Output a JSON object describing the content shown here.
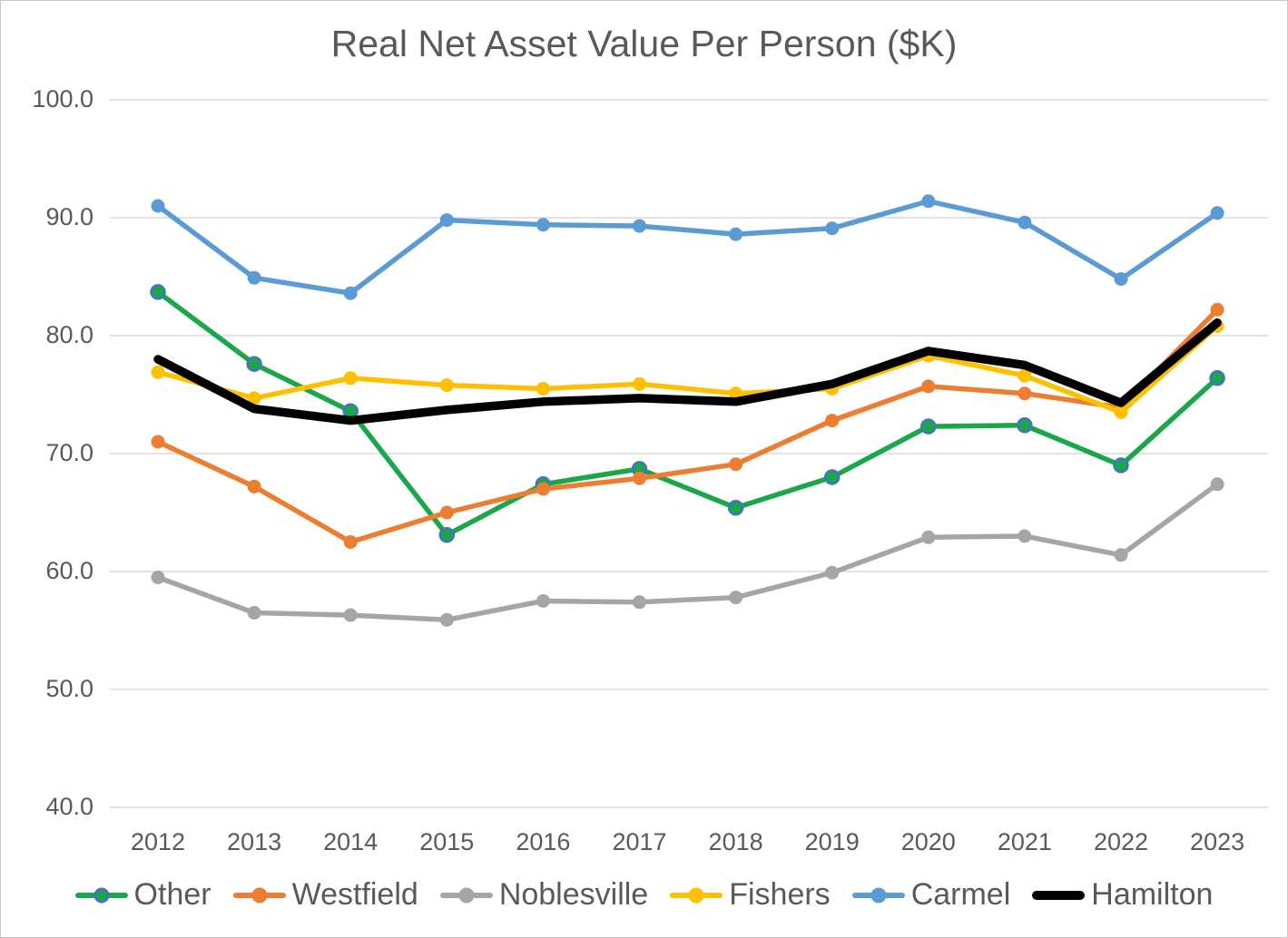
{
  "chart_data": {
    "type": "line",
    "title": "Real Net Asset Value Per Person ($K)",
    "xlabel": "",
    "ylabel": "",
    "x_tick_labels": [
      "2012",
      "2013",
      "2014",
      "2015",
      "2016",
      "2017",
      "2018",
      "2019",
      "2020",
      "2021",
      "2022",
      "2023"
    ],
    "y_tick_labels": [
      "100.0",
      "90.0",
      "80.0",
      "70.0",
      "60.0",
      "50.0",
      "40.0"
    ],
    "y_tick_values": [
      100,
      90,
      80,
      70,
      60,
      50,
      40
    ],
    "ylim": [
      40,
      100
    ],
    "grid": "horizontal-only",
    "gridline_color": "#d9d9d9",
    "text_color": "#595959",
    "legend_position": "bottom",
    "series": [
      {
        "name": "Other",
        "color": "#1aa74a",
        "marker": true,
        "marker_border_color": "#4472c4",
        "values": [
          83.7,
          77.6,
          73.6,
          63.1,
          67.4,
          68.7,
          65.4,
          68.0,
          72.3,
          72.4,
          69.0,
          76.4
        ]
      },
      {
        "name": "Westfield",
        "color": "#ed7d31",
        "marker": true,
        "marker_border_color": null,
        "values": [
          71.0,
          67.2,
          62.5,
          65.0,
          67.0,
          67.9,
          69.1,
          72.8,
          75.7,
          75.1,
          73.9,
          82.2
        ]
      },
      {
        "name": "Noblesville",
        "color": "#a5a5a5",
        "marker": true,
        "marker_border_color": null,
        "values": [
          59.5,
          56.5,
          56.3,
          55.9,
          57.5,
          57.4,
          57.8,
          59.9,
          62.9,
          63.0,
          61.4,
          67.4
        ]
      },
      {
        "name": "Fishers",
        "color": "#ffc000",
        "marker": true,
        "marker_border_color": null,
        "values": [
          76.9,
          74.7,
          76.4,
          75.8,
          75.5,
          75.9,
          75.1,
          75.5,
          78.3,
          76.6,
          73.5,
          80.8
        ]
      },
      {
        "name": "Carmel",
        "color": "#5b9bd5",
        "marker": true,
        "marker_border_color": null,
        "values": [
          91.0,
          84.9,
          83.6,
          89.8,
          89.4,
          89.3,
          88.6,
          89.1,
          91.4,
          89.6,
          84.8,
          90.4
        ]
      },
      {
        "name": "Hamilton",
        "color": "#000000",
        "marker": false,
        "marker_border_color": null,
        "values": [
          78.0,
          73.8,
          72.8,
          73.7,
          74.4,
          74.7,
          74.4,
          75.9,
          78.7,
          77.5,
          74.3,
          81.1
        ]
      }
    ]
  }
}
